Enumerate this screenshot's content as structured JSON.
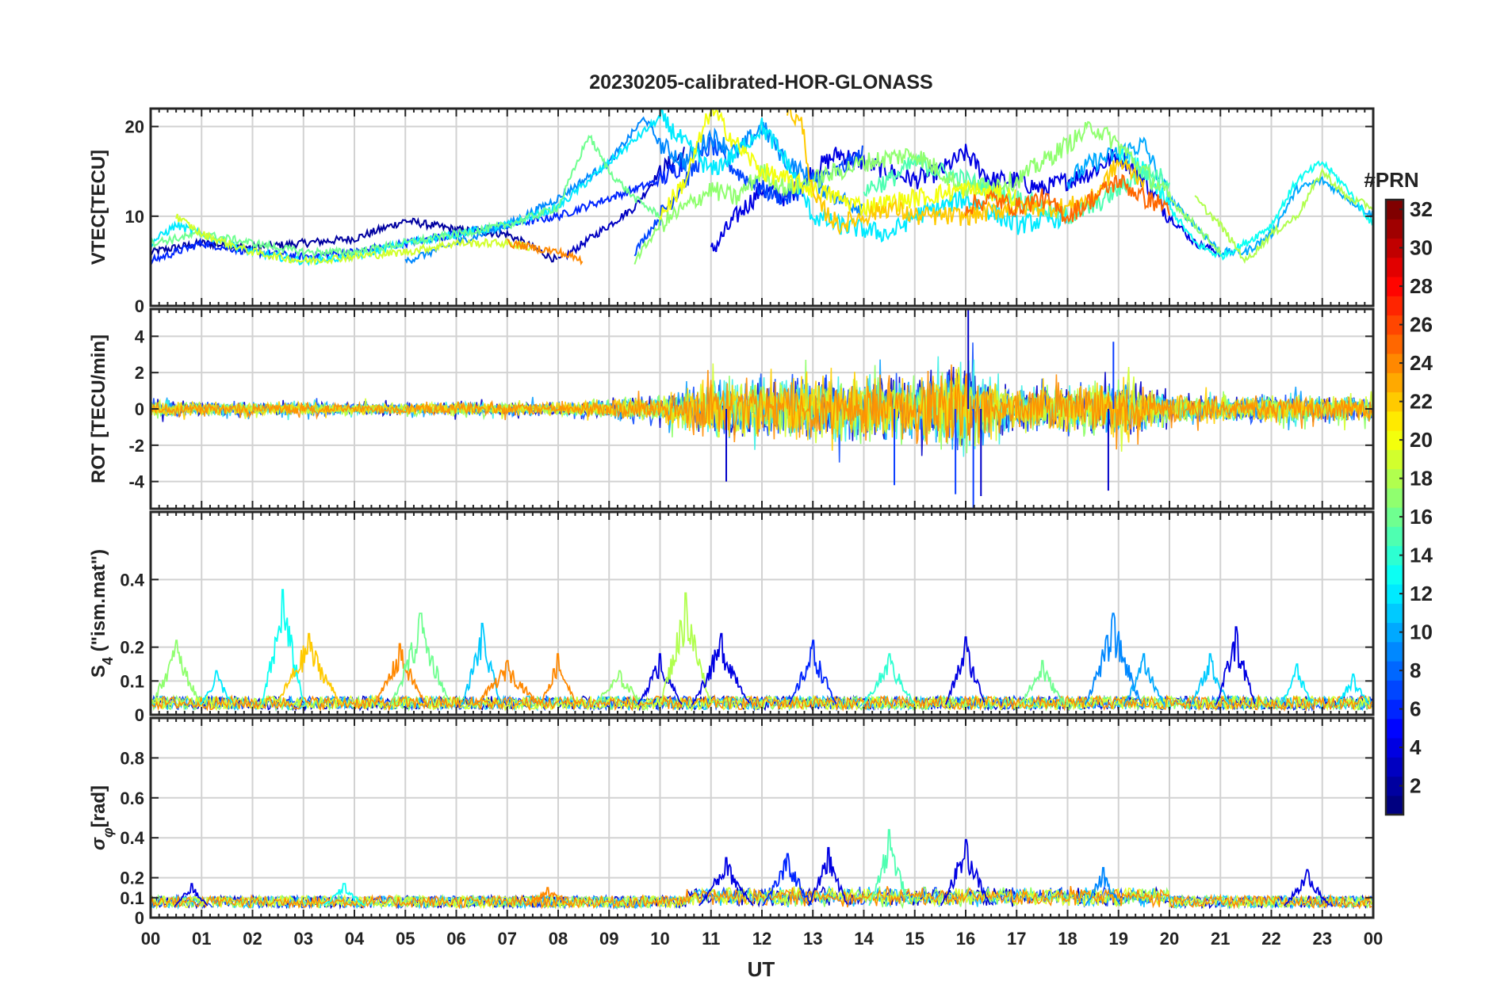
{
  "chart_data": {
    "type": "line",
    "title": "20230205-calibrated-HOR-GLONASS",
    "xlabel": "UT",
    "x_ticks": [
      "00",
      "01",
      "02",
      "03",
      "04",
      "05",
      "06",
      "07",
      "08",
      "09",
      "10",
      "11",
      "12",
      "13",
      "14",
      "15",
      "16",
      "17",
      "18",
      "19",
      "20",
      "21",
      "22",
      "23",
      "00"
    ],
    "xlim": [
      0,
      24
    ],
    "colorbar": {
      "label": "#PRN",
      "range": [
        1,
        32
      ],
      "ticks": [
        "2",
        "4",
        "6",
        "8",
        "10",
        "12",
        "14",
        "16",
        "18",
        "20",
        "22",
        "24",
        "26",
        "28",
        "30",
        "32"
      ],
      "colormap": "jet"
    },
    "panels": [
      {
        "id": "vtec",
        "ylabel": "VTEC[TECU]",
        "ylim": [
          0,
          22
        ],
        "y_ticks": [
          {
            "v": 0,
            "label": "0"
          },
          {
            "v": 10,
            "label": "10"
          },
          {
            "v": 20,
            "label": "20"
          }
        ],
        "grid": true,
        "series_colors": [
          "#0000a8",
          "#0a2ef0",
          "#0f78ff",
          "#14c8ff",
          "#46ffb0",
          "#9cff5c",
          "#e0ff2a",
          "#ffb000",
          "#ff6a00"
        ],
        "series": [
          {
            "prn": 2,
            "x": [
              0,
              1,
              2,
              3,
              4,
              5,
              6,
              7,
              8
            ],
            "y": [
              6,
              7,
              6.5,
              7,
              7.5,
              9.5,
              8.5,
              8,
              5
            ]
          },
          {
            "prn": 3,
            "x": [
              8,
              8.5,
              9,
              9.5,
              10,
              10.5
            ],
            "y": [
              5,
              7,
              9,
              11,
              15,
              17
            ]
          },
          {
            "prn": 4,
            "x": [
              11,
              11.5,
              12,
              12.5,
              13,
              13.5,
              14,
              14.5,
              15,
              15.5,
              16,
              16.5,
              17,
              17.5,
              18,
              18.5,
              19,
              19.5,
              20,
              20.5,
              21
            ],
            "y": [
              6,
              10,
              13,
              12,
              15,
              17,
              16,
              15,
              14,
              15,
              17,
              14,
              14,
              13,
              14,
              15,
              17,
              14,
              10,
              7,
              6
            ]
          },
          {
            "prn": 6,
            "x": [
              0,
              1,
              2,
              3,
              4,
              5,
              6,
              7,
              8,
              9,
              10,
              10.5
            ],
            "y": [
              5,
              7,
              6,
              5.5,
              6,
              7,
              8,
              9,
              10,
              12,
              14,
              16
            ]
          },
          {
            "prn": 7,
            "x": [
              9.5,
              10,
              10.5,
              11,
              11.5,
              12,
              12.5,
              13,
              13.5,
              14
            ],
            "y": [
              6,
              10,
              14,
              18,
              15,
              13,
              12,
              14,
              15,
              17
            ]
          },
          {
            "prn": 9,
            "x": [
              5,
              6,
              7,
              8,
              9,
              9.7,
              10,
              10.5,
              11,
              11.5,
              12,
              12.5,
              13,
              13.5,
              14
            ],
            "y": [
              5,
              7,
              9,
              12,
              16,
              21,
              18,
              16,
              19,
              17,
              20,
              16,
              14,
              12,
              11
            ]
          },
          {
            "prn": 10,
            "x": [
              18,
              18.5,
              19,
              19.5,
              20,
              20.5,
              21,
              21.5,
              22,
              22.5,
              23,
              23.5,
              24
            ],
            "y": [
              14,
              16,
              17,
              18,
              12,
              9,
              6,
              6,
              8,
              13,
              14,
              12,
              10
            ]
          },
          {
            "prn": 12,
            "x": [
              0,
              0.5,
              1,
              2,
              3,
              4,
              5,
              6,
              7,
              8,
              9,
              10,
              10.5,
              11,
              11.5,
              12,
              12.5,
              13,
              13.5,
              14,
              14.5,
              15,
              16,
              17,
              18
            ],
            "y": [
              7,
              9,
              8,
              6,
              5,
              5.5,
              7,
              8,
              9,
              11,
              16,
              21,
              18,
              15,
              17,
              20,
              16,
              10,
              9,
              8.5,
              8,
              10,
              12,
              9,
              10
            ]
          },
          {
            "prn": 13,
            "x": [
              19,
              19.5,
              20,
              20.5,
              21,
              21.5,
              22,
              22.5,
              23,
              23.5,
              24
            ],
            "y": [
              17,
              15,
              11,
              7,
              5.5,
              7,
              9,
              14,
              16,
              13,
              9
            ]
          },
          {
            "prn": 15,
            "x": [
              14,
              14.5,
              15,
              15.5,
              16,
              16.5,
              17,
              17.5,
              18,
              18.5,
              19,
              19.5,
              20
            ],
            "y": [
              13,
              14,
              16,
              15,
              14,
              13,
              12,
              11,
              10,
              11,
              13,
              15,
              14
            ]
          },
          {
            "prn": 16,
            "x": [
              0,
              1,
              2,
              3,
              4,
              5,
              6,
              7,
              8,
              8.6,
              9,
              9.5,
              10
            ],
            "y": [
              7,
              8,
              7,
              6,
              6,
              7,
              8,
              9,
              11,
              19,
              15,
              12,
              10
            ]
          },
          {
            "prn": 17,
            "x": [
              9.5,
              10,
              10.5,
              11,
              11.5,
              12,
              12.5,
              13,
              14,
              15,
              16,
              17,
              18,
              18.5,
              19,
              19.5,
              20,
              20.5,
              21
            ],
            "y": [
              5,
              9,
              11,
              13,
              12,
              15,
              13,
              14,
              16,
              17,
              13,
              14,
              18,
              20,
              18,
              15,
              12,
              9,
              6
            ]
          },
          {
            "prn": 18,
            "x": [
              20.5,
              21,
              21.5,
              22,
              22.5,
              23,
              23.5,
              24
            ],
            "y": [
              12,
              9,
              5,
              8,
              10,
              15,
              12,
              11
            ]
          },
          {
            "prn": 19,
            "x": [
              0.5,
              1,
              2,
              3,
              4,
              5,
              6,
              7,
              7.5
            ],
            "y": [
              10,
              8,
              6,
              5,
              5.5,
              6,
              7,
              7,
              6.5
            ]
          },
          {
            "prn": 20,
            "x": [
              10,
              10.5,
              11,
              11.5,
              12,
              12.5,
              13,
              13.5,
              14,
              15,
              16,
              17
            ],
            "y": [
              10,
              14,
              22,
              18,
              15,
              14,
              13,
              12,
              11,
              12,
              13,
              12
            ]
          },
          {
            "prn": 22,
            "x": [
              12.5,
              12.8,
              13,
              13.5,
              14,
              14.5,
              15,
              16,
              17,
              18,
              18.5,
              19,
              19.5
            ],
            "y": [
              22,
              20,
              12,
              9,
              10,
              11,
              10,
              10,
              11,
              11,
              12,
              16,
              14
            ]
          },
          {
            "prn": 24,
            "x": [
              7,
              7.5,
              8,
              8.5
            ],
            "y": [
              7,
              6.5,
              6,
              5
            ]
          },
          {
            "prn": 25,
            "x": [
              16,
              16.5,
              17,
              17.5,
              18,
              18.5,
              19,
              19.5,
              20
            ],
            "y": [
              11,
              12,
              11,
              12,
              10,
              12,
              14,
              12,
              11
            ]
          }
        ]
      },
      {
        "id": "rot",
        "ylabel": "ROT [TECU/min]",
        "ylim": [
          -5.5,
          5.5
        ],
        "y_ticks": [
          {
            "v": -4,
            "label": "-4"
          },
          {
            "v": -2,
            "label": "-2"
          },
          {
            "v": 0,
            "label": "0"
          },
          {
            "v": 2,
            "label": "2"
          },
          {
            "v": 4,
            "label": "4"
          }
        ],
        "grid": true,
        "envelope": {
          "x": [
            0,
            4,
            8,
            10,
            11,
            13,
            15,
            16,
            16.3,
            17,
            18,
            19,
            20,
            21,
            22,
            24
          ],
          "y": [
            0.8,
            0.6,
            0.7,
            1.3,
            3,
            3.2,
            3.3,
            5,
            3.5,
            2,
            2.5,
            3,
            1.5,
            1.2,
            1.5,
            1.2
          ]
        },
        "colors": [
          "#0000c8",
          "#1450ff",
          "#0fa0ff",
          "#3cf0e6",
          "#8cff66",
          "#d2ff30",
          "#ffd000",
          "#ff8c00"
        ]
      },
      {
        "id": "s4",
        "ylabel": "S4 (\"ism.mat\")",
        "ylabel_symbol": "S",
        "ylabel_subscript": "4",
        "ylabel_rest": " (\"ism.mat\")",
        "ylim": [
          0,
          0.6
        ],
        "y_ticks": [
          {
            "v": 0,
            "label": "0"
          },
          {
            "v": 0.1,
            "label": "0.1"
          },
          {
            "v": 0.2,
            "label": "0.2"
          },
          {
            "v": 0.4,
            "label": "0.4"
          }
        ],
        "grid": true,
        "peaks": [
          {
            "x": 0.5,
            "v": 0.22,
            "prn": 17
          },
          {
            "x": 1.3,
            "v": 0.13,
            "prn": 12
          },
          {
            "x": 2.6,
            "v": 0.37,
            "prn": 13
          },
          {
            "x": 3.1,
            "v": 0.24,
            "prn": 22
          },
          {
            "x": 4.9,
            "v": 0.21,
            "prn": 24
          },
          {
            "x": 5.3,
            "v": 0.3,
            "prn": 16
          },
          {
            "x": 6.5,
            "v": 0.27,
            "prn": 11
          },
          {
            "x": 7.0,
            "v": 0.16,
            "prn": 24
          },
          {
            "x": 8.0,
            "v": 0.18,
            "prn": 24
          },
          {
            "x": 9.2,
            "v": 0.13,
            "prn": 17
          },
          {
            "x": 10.0,
            "v": 0.18,
            "prn": 4
          },
          {
            "x": 10.5,
            "v": 0.36,
            "prn": 18
          },
          {
            "x": 11.2,
            "v": 0.24,
            "prn": 4
          },
          {
            "x": 13.0,
            "v": 0.22,
            "prn": 6
          },
          {
            "x": 14.5,
            "v": 0.18,
            "prn": 14
          },
          {
            "x": 16.0,
            "v": 0.23,
            "prn": 4
          },
          {
            "x": 17.5,
            "v": 0.16,
            "prn": 16
          },
          {
            "x": 18.9,
            "v": 0.3,
            "prn": 9
          },
          {
            "x": 19.5,
            "v": 0.18,
            "prn": 10
          },
          {
            "x": 20.8,
            "v": 0.18,
            "prn": 11
          },
          {
            "x": 21.3,
            "v": 0.26,
            "prn": 4
          },
          {
            "x": 22.5,
            "v": 0.15,
            "prn": 12
          },
          {
            "x": 23.6,
            "v": 0.12,
            "prn": 12
          }
        ]
      },
      {
        "id": "sigma_phi",
        "ylabel": "σφ[rad]",
        "ylabel_symbol": "σ",
        "ylabel_subscript": "φ",
        "ylabel_rest": "[rad]",
        "ylim": [
          0,
          1.0
        ],
        "y_ticks": [
          {
            "v": 0,
            "label": "0"
          },
          {
            "v": 0.1,
            "label": "0.1"
          },
          {
            "v": 0.2,
            "label": "0.2"
          },
          {
            "v": 0.4,
            "label": "0.4"
          },
          {
            "v": 0.6,
            "label": "0.6"
          },
          {
            "v": 0.8,
            "label": "0.8"
          }
        ],
        "grid": true,
        "peaks": [
          {
            "x": 0.8,
            "v": 0.17,
            "prn": 4
          },
          {
            "x": 3.8,
            "v": 0.17,
            "prn": 13
          },
          {
            "x": 7.8,
            "v": 0.15,
            "prn": 24
          },
          {
            "x": 11.3,
            "v": 0.3,
            "prn": 4
          },
          {
            "x": 12.5,
            "v": 0.32,
            "prn": 6
          },
          {
            "x": 13.3,
            "v": 0.35,
            "prn": 4
          },
          {
            "x": 14.5,
            "v": 0.44,
            "prn": 15
          },
          {
            "x": 16.0,
            "v": 0.39,
            "prn": 4
          },
          {
            "x": 18.7,
            "v": 0.25,
            "prn": 9
          },
          {
            "x": 22.7,
            "v": 0.24,
            "prn": 4
          }
        ]
      }
    ]
  }
}
